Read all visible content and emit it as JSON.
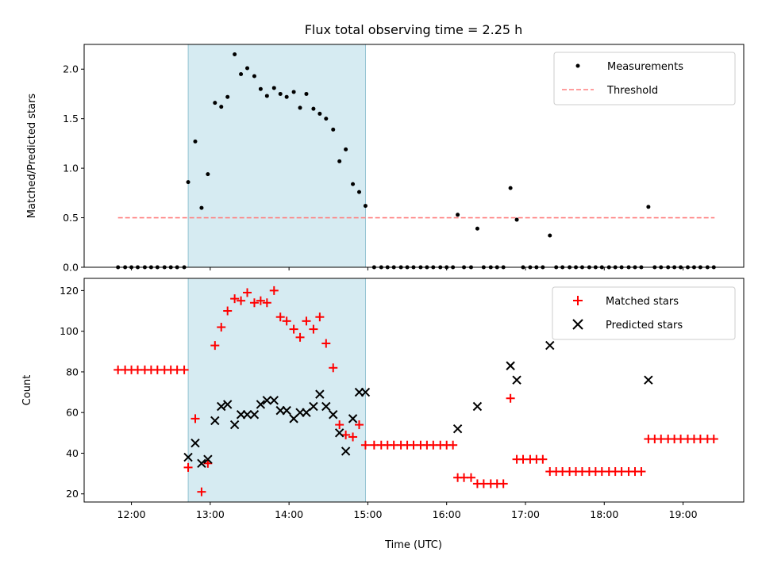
{
  "chart_data": {
    "type": "scatter",
    "title": "Flux total observing time = 2.25 h",
    "xlabel": "Time (UTC)",
    "x_unit": "hours UTC",
    "x_range": [
      11.4,
      19.77
    ],
    "x_ticks": [
      12,
      13,
      14,
      15,
      16,
      17,
      18,
      19
    ],
    "x_tick_labels": [
      "12:00",
      "13:00",
      "14:00",
      "15:00",
      "16:00",
      "17:00",
      "18:00",
      "19:00"
    ],
    "shaded_interval": [
      12.72,
      14.97
    ],
    "shade_color": "#add8e6",
    "panels": [
      {
        "id": "ratio",
        "ylabel": "Matched/Predicted stars",
        "ylim": [
          0,
          2.25
        ],
        "y_ticks": [
          0,
          0.5,
          1.0,
          1.5,
          2.0
        ],
        "y_tick_labels": [
          "0.0",
          "0.5",
          "1.0",
          "1.5",
          "2.0"
        ],
        "legend_position": "top-right",
        "threshold": {
          "name": "Threshold",
          "value": 0.5,
          "x_range": [
            11.83,
            19.4
          ],
          "color": "#ff7f7f"
        },
        "series": [
          {
            "name": "Measurements",
            "marker": "dot",
            "color": "#000000",
            "points": [
              [
                11.83,
                0
              ],
              [
                11.92,
                0
              ],
              [
                12.0,
                0
              ],
              [
                12.08,
                0
              ],
              [
                12.17,
                0
              ],
              [
                12.25,
                0
              ],
              [
                12.33,
                0
              ],
              [
                12.42,
                0
              ],
              [
                12.5,
                0
              ],
              [
                12.58,
                0
              ],
              [
                12.67,
                0
              ],
              [
                12.72,
                0.86
              ],
              [
                12.81,
                1.27
              ],
              [
                12.89,
                0.6
              ],
              [
                12.97,
                0.94
              ],
              [
                13.06,
                1.66
              ],
              [
                13.14,
                1.62
              ],
              [
                13.22,
                1.72
              ],
              [
                13.31,
                2.15
              ],
              [
                13.39,
                1.95
              ],
              [
                13.47,
                2.01
              ],
              [
                13.56,
                1.93
              ],
              [
                13.64,
                1.8
              ],
              [
                13.72,
                1.73
              ],
              [
                13.81,
                1.81
              ],
              [
                13.89,
                1.75
              ],
              [
                13.97,
                1.72
              ],
              [
                14.06,
                1.77
              ],
              [
                14.14,
                1.61
              ],
              [
                14.22,
                1.75
              ],
              [
                14.31,
                1.6
              ],
              [
                14.39,
                1.55
              ],
              [
                14.47,
                1.5
              ],
              [
                14.56,
                1.39
              ],
              [
                14.64,
                1.07
              ],
              [
                14.72,
                1.19
              ],
              [
                14.81,
                0.84
              ],
              [
                14.89,
                0.76
              ],
              [
                14.97,
                0.62
              ],
              [
                15.08,
                0
              ],
              [
                15.17,
                0
              ],
              [
                15.25,
                0
              ],
              [
                15.33,
                0
              ],
              [
                15.42,
                0
              ],
              [
                15.5,
                0
              ],
              [
                15.58,
                0
              ],
              [
                15.67,
                0
              ],
              [
                15.75,
                0
              ],
              [
                15.83,
                0
              ],
              [
                15.92,
                0
              ],
              [
                16.0,
                0
              ],
              [
                16.08,
                0
              ],
              [
                16.14,
                0.53
              ],
              [
                16.22,
                0
              ],
              [
                16.31,
                0
              ],
              [
                16.39,
                0.39
              ],
              [
                16.47,
                0
              ],
              [
                16.56,
                0
              ],
              [
                16.64,
                0
              ],
              [
                16.72,
                0
              ],
              [
                16.81,
                0.8
              ],
              [
                16.89,
                0.48
              ],
              [
                16.97,
                0
              ],
              [
                17.06,
                0
              ],
              [
                17.14,
                0
              ],
              [
                17.22,
                0
              ],
              [
                17.31,
                0.32
              ],
              [
                17.39,
                0
              ],
              [
                17.47,
                0
              ],
              [
                17.56,
                0
              ],
              [
                17.64,
                0
              ],
              [
                17.72,
                0
              ],
              [
                17.81,
                0
              ],
              [
                17.89,
                0
              ],
              [
                17.97,
                0
              ],
              [
                18.06,
                0
              ],
              [
                18.14,
                0
              ],
              [
                18.22,
                0
              ],
              [
                18.31,
                0
              ],
              [
                18.39,
                0
              ],
              [
                18.47,
                0
              ],
              [
                18.56,
                0.61
              ],
              [
                18.64,
                0
              ],
              [
                18.72,
                0
              ],
              [
                18.81,
                0
              ],
              [
                18.89,
                0
              ],
              [
                18.97,
                0
              ],
              [
                19.06,
                0
              ],
              [
                19.14,
                0
              ],
              [
                19.22,
                0
              ],
              [
                19.31,
                0
              ],
              [
                19.39,
                0
              ]
            ]
          }
        ]
      },
      {
        "id": "counts",
        "ylabel": "Count",
        "ylim": [
          16,
          126
        ],
        "y_ticks": [
          20,
          40,
          60,
          80,
          100,
          120
        ],
        "y_tick_labels": [
          "20",
          "40",
          "60",
          "80",
          "100",
          "120"
        ],
        "legend_position": "top-right",
        "series": [
          {
            "name": "Matched stars",
            "marker": "plus",
            "color": "#ff0000",
            "points": [
              [
                11.83,
                81
              ],
              [
                11.92,
                81
              ],
              [
                12.0,
                81
              ],
              [
                12.08,
                81
              ],
              [
                12.17,
                81
              ],
              [
                12.25,
                81
              ],
              [
                12.33,
                81
              ],
              [
                12.42,
                81
              ],
              [
                12.5,
                81
              ],
              [
                12.58,
                81
              ],
              [
                12.67,
                81
              ],
              [
                12.72,
                33
              ],
              [
                12.81,
                57
              ],
              [
                12.89,
                21
              ],
              [
                12.97,
                35
              ],
              [
                13.06,
                93
              ],
              [
                13.14,
                102
              ],
              [
                13.22,
                110
              ],
              [
                13.31,
                116
              ],
              [
                13.39,
                115
              ],
              [
                13.47,
                119
              ],
              [
                13.56,
                114
              ],
              [
                13.64,
                115
              ],
              [
                13.72,
                114
              ],
              [
                13.81,
                120
              ],
              [
                13.89,
                107
              ],
              [
                13.97,
                105
              ],
              [
                14.06,
                101
              ],
              [
                14.14,
                97
              ],
              [
                14.22,
                105
              ],
              [
                14.31,
                101
              ],
              [
                14.39,
                107
              ],
              [
                14.47,
                94
              ],
              [
                14.56,
                82
              ],
              [
                14.64,
                54
              ],
              [
                14.72,
                49
              ],
              [
                14.81,
                48
              ],
              [
                14.89,
                54
              ],
              [
                14.97,
                44
              ],
              [
                15.08,
                44
              ],
              [
                15.17,
                44
              ],
              [
                15.25,
                44
              ],
              [
                15.33,
                44
              ],
              [
                15.42,
                44
              ],
              [
                15.5,
                44
              ],
              [
                15.58,
                44
              ],
              [
                15.67,
                44
              ],
              [
                15.75,
                44
              ],
              [
                15.83,
                44
              ],
              [
                15.92,
                44
              ],
              [
                16.0,
                44
              ],
              [
                16.08,
                44
              ],
              [
                16.14,
                28
              ],
              [
                16.22,
                28
              ],
              [
                16.31,
                28
              ],
              [
                16.39,
                25
              ],
              [
                16.47,
                25
              ],
              [
                16.56,
                25
              ],
              [
                16.64,
                25
              ],
              [
                16.72,
                25
              ],
              [
                16.81,
                67
              ],
              [
                16.89,
                37
              ],
              [
                16.97,
                37
              ],
              [
                17.06,
                37
              ],
              [
                17.14,
                37
              ],
              [
                17.22,
                37
              ],
              [
                17.31,
                31
              ],
              [
                17.39,
                31
              ],
              [
                17.47,
                31
              ],
              [
                17.56,
                31
              ],
              [
                17.64,
                31
              ],
              [
                17.72,
                31
              ],
              [
                17.81,
                31
              ],
              [
                17.89,
                31
              ],
              [
                17.97,
                31
              ],
              [
                18.06,
                31
              ],
              [
                18.14,
                31
              ],
              [
                18.22,
                31
              ],
              [
                18.31,
                31
              ],
              [
                18.39,
                31
              ],
              [
                18.47,
                31
              ],
              [
                18.56,
                47
              ],
              [
                18.64,
                47
              ],
              [
                18.72,
                47
              ],
              [
                18.81,
                47
              ],
              [
                18.89,
                47
              ],
              [
                18.97,
                47
              ],
              [
                19.06,
                47
              ],
              [
                19.14,
                47
              ],
              [
                19.22,
                47
              ],
              [
                19.31,
                47
              ],
              [
                19.39,
                47
              ]
            ]
          },
          {
            "name": "Predicted stars",
            "marker": "x",
            "color": "#000000",
            "points": [
              [
                12.72,
                38
              ],
              [
                12.81,
                45
              ],
              [
                12.89,
                35
              ],
              [
                12.97,
                37
              ],
              [
                13.06,
                56
              ],
              [
                13.14,
                63
              ],
              [
                13.22,
                64
              ],
              [
                13.31,
                54
              ],
              [
                13.39,
                59
              ],
              [
                13.47,
                59
              ],
              [
                13.56,
                59
              ],
              [
                13.64,
                64
              ],
              [
                13.72,
                66
              ],
              [
                13.81,
                66
              ],
              [
                13.89,
                61
              ],
              [
                13.97,
                61
              ],
              [
                14.06,
                57
              ],
              [
                14.14,
                60
              ],
              [
                14.22,
                60
              ],
              [
                14.31,
                63
              ],
              [
                14.39,
                69
              ],
              [
                14.47,
                63
              ],
              [
                14.56,
                59
              ],
              [
                14.64,
                50
              ],
              [
                14.72,
                41
              ],
              [
                14.81,
                57
              ],
              [
                14.89,
                70
              ],
              [
                14.97,
                70
              ],
              [
                16.14,
                52
              ],
              [
                16.39,
                63
              ],
              [
                16.81,
                83
              ],
              [
                16.89,
                76
              ],
              [
                17.31,
                93
              ],
              [
                18.56,
                76
              ]
            ]
          }
        ]
      }
    ]
  }
}
